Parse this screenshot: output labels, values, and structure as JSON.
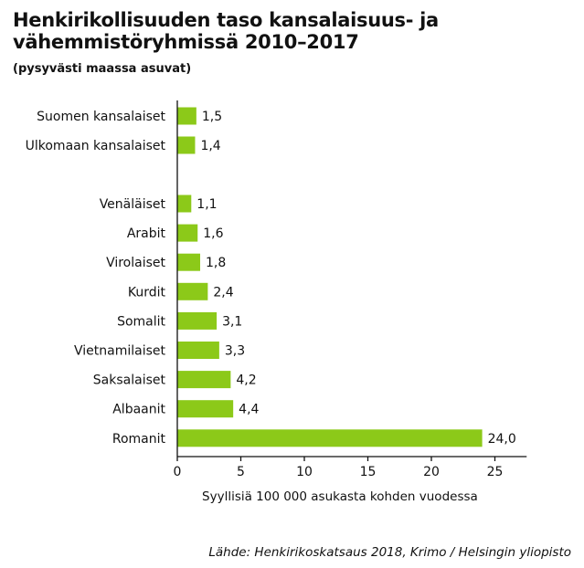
{
  "chart_data": {
    "type": "bar",
    "orientation": "horizontal",
    "title": "Henkirikollisuuden taso kansalaisuus- ja vähemmistöryhmissä 2010–2017",
    "subtitle": "(pysyvästi maassa asuvat)",
    "xlabel": "Syyllisiä 100 000 asukasta kohden vuodessa",
    "ylabel": "",
    "xlim": [
      0,
      27.5
    ],
    "xticks": [
      0,
      5,
      10,
      15,
      20,
      25
    ],
    "xtick_labels": [
      "0",
      "5",
      "10",
      "15",
      "20",
      "25"
    ],
    "grid": false,
    "bar_color": "#8cc919",
    "categories": [
      "Suomen kansalaiset",
      "Ulkomaan kansalaiset",
      "Venäläiset",
      "Arabit",
      "Virolaiset",
      "Kurdit",
      "Somalit",
      "Vietnamilaiset",
      "Saksalaiset",
      "Albaanit",
      "Romanit"
    ],
    "values": [
      1.5,
      1.4,
      1.1,
      1.6,
      1.8,
      2.4,
      3.1,
      3.3,
      4.2,
      4.4,
      24.0
    ],
    "value_labels": [
      "1,5",
      "1,4",
      "1,1",
      "1,6",
      "1,8",
      "2,4",
      "3,1",
      "3,3",
      "4,2",
      "4,4",
      "24,0"
    ],
    "source": "Lähde: Henkirikoskatsaus 2018, Krimo / Helsingin yliopisto"
  }
}
